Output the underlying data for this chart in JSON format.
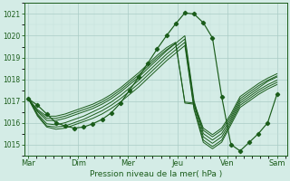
{
  "xlabel": "Pression niveau de la mer( hPa )",
  "bg_color": "#d4ece6",
  "grid_major_color": "#aaccc6",
  "grid_minor_color": "#c4deda",
  "line_color": "#1a5c1a",
  "ylim": [
    1014.5,
    1021.5
  ],
  "xlim": [
    -0.08,
    5.2
  ],
  "day_labels": [
    "Mar",
    "Dim",
    "Mer",
    "Jeu",
    "Ven",
    "Sam"
  ],
  "day_positions": [
    0,
    1,
    2,
    3,
    4,
    5
  ],
  "yticks": [
    1015,
    1016,
    1017,
    1018,
    1019,
    1020,
    1021
  ],
  "marked_series": [
    1017.1,
    1016.8,
    1016.4,
    1016.0,
    1015.85,
    1015.75,
    1015.8,
    1015.95,
    1016.15,
    1016.45,
    1016.9,
    1017.5,
    1018.1,
    1018.75,
    1019.4,
    1020.0,
    1020.55,
    1021.05,
    1021.0,
    1020.6,
    1019.9,
    1017.2,
    1015.0,
    1014.7,
    1015.1,
    1015.5,
    1016.0,
    1017.3
  ],
  "plain_series": [
    [
      1017.1,
      1016.5,
      1016.1,
      1016.1,
      1016.2,
      1016.35,
      1016.5,
      1016.65,
      1016.85,
      1017.1,
      1017.4,
      1017.75,
      1018.1,
      1018.5,
      1018.9,
      1019.3,
      1019.65,
      1020.0,
      1017.0,
      1015.5,
      1015.2,
      1015.5,
      1016.2,
      1017.0,
      1017.3,
      1017.6,
      1017.9,
      1018.1
    ],
    [
      1017.1,
      1016.4,
      1015.95,
      1015.9,
      1016.0,
      1016.15,
      1016.3,
      1016.5,
      1016.7,
      1016.95,
      1017.25,
      1017.6,
      1017.95,
      1018.35,
      1018.75,
      1019.15,
      1019.5,
      1019.85,
      1016.85,
      1015.35,
      1015.05,
      1015.35,
      1016.1,
      1016.9,
      1017.2,
      1017.5,
      1017.75,
      1017.95
    ],
    [
      1017.1,
      1016.35,
      1015.85,
      1015.8,
      1015.85,
      1016.0,
      1016.15,
      1016.35,
      1016.55,
      1016.8,
      1017.1,
      1017.45,
      1017.8,
      1018.2,
      1018.6,
      1019.0,
      1019.35,
      1019.7,
      1016.7,
      1015.2,
      1014.9,
      1015.2,
      1016.0,
      1016.8,
      1017.1,
      1017.4,
      1017.65,
      1017.85
    ],
    [
      1017.1,
      1016.3,
      1015.8,
      1015.7,
      1015.75,
      1015.9,
      1016.05,
      1016.2,
      1016.4,
      1016.65,
      1016.95,
      1017.3,
      1017.65,
      1018.05,
      1018.45,
      1018.85,
      1019.2,
      1019.55,
      1016.6,
      1015.1,
      1014.8,
      1015.1,
      1015.9,
      1016.7,
      1017.0,
      1017.3,
      1017.55,
      1017.75
    ],
    [
      1017.1,
      1016.55,
      1016.2,
      1016.2,
      1016.3,
      1016.45,
      1016.6,
      1016.75,
      1016.95,
      1017.2,
      1017.5,
      1017.85,
      1018.2,
      1018.6,
      1019.0,
      1019.35,
      1019.65,
      1016.9,
      1016.85,
      1015.65,
      1015.35,
      1015.65,
      1016.3,
      1017.1,
      1017.4,
      1017.7,
      1017.95,
      1018.15
    ],
    [
      1017.1,
      1016.6,
      1016.3,
      1016.3,
      1016.4,
      1016.55,
      1016.7,
      1016.85,
      1017.05,
      1017.3,
      1017.6,
      1017.95,
      1018.3,
      1018.7,
      1019.1,
      1019.45,
      1019.7,
      1016.95,
      1016.9,
      1015.75,
      1015.45,
      1015.75,
      1016.4,
      1017.2,
      1017.5,
      1017.8,
      1018.05,
      1018.25
    ]
  ]
}
